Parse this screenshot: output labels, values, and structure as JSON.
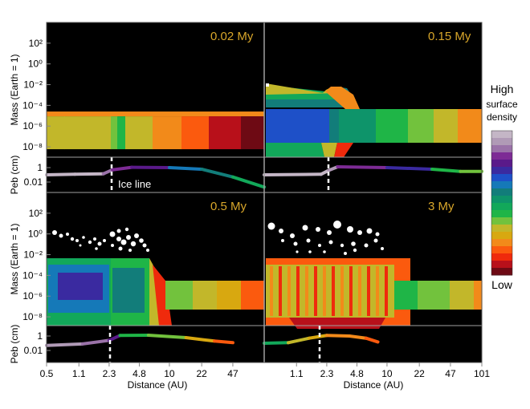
{
  "figure": {
    "x_axis_title": "Distance (AU)",
    "y_axis_title_mass": "Mass (Earth = 1)",
    "y_axis_title_peb": "Peb (cm)",
    "ice_line_label": "Ice line",
    "mass_ticks": [
      "10²",
      "10⁰",
      "10⁻²",
      "10⁻⁴",
      "10⁻⁶",
      "10⁻⁸"
    ],
    "peb_ticks": [
      "1",
      "0.01"
    ],
    "colorbar": {
      "high_label": "High",
      "sub_label_1": "surface",
      "sub_label_2": "density",
      "low_label": "Low",
      "colors": [
        "#c4b6c6",
        "#b09ab6",
        "#9a72a8",
        "#7d2b95",
        "#5a1a8a",
        "#3a2aa0",
        "#1e50c8",
        "#1579b8",
        "#127d7a",
        "#0e946a",
        "#12a85a",
        "#1fb547",
        "#72c23d",
        "#c2b72a",
        "#d8a810",
        "#f28a1a",
        "#fb5a0e",
        "#ef2a0c",
        "#b8101a",
        "#6e0a14"
      ]
    },
    "colors": {
      "background": "#000000",
      "ice_line": "#ffffff",
      "time_label": "#d8a62a",
      "divider": "#a0a0a0"
    }
  },
  "chart_data": [
    {
      "type": "heatmap",
      "panel": "top-left",
      "title": "0.02 My",
      "xscale": "log",
      "xlim": [
        0.5,
        101
      ],
      "yscale": "log",
      "ylim": [
        1e-09,
        10000.0
      ],
      "x_ticks": [
        0.5,
        1.1,
        2.3,
        4.8,
        10,
        22,
        47
      ],
      "x_tick_labels": [
        "0.5",
        "1.1",
        "2.3",
        "4.8",
        "10",
        "22",
        "47"
      ],
      "pebble_size_cm": [
        [
          0.5,
          0.1
        ],
        [
          1.0,
          0.12
        ],
        [
          2.0,
          0.14
        ],
        [
          2.5,
          0.5
        ],
        [
          4,
          1.1
        ],
        [
          10,
          1.0
        ],
        [
          22,
          0.6
        ],
        [
          47,
          0.05
        ],
        [
          101,
          0.002
        ]
      ]
    },
    {
      "type": "heatmap",
      "panel": "top-right",
      "title": "0.15 My",
      "xscale": "log",
      "xlim": [
        0.5,
        101
      ],
      "yscale": "log",
      "ylim": [
        1e-09,
        10000.0
      ],
      "x_ticks": [
        1.1,
        2.3,
        4.8,
        10,
        22,
        47,
        101
      ],
      "x_tick_labels": [
        "1.1",
        "2.3",
        "4.8",
        "10",
        "22",
        "47",
        "101"
      ],
      "pebble_size_cm": [
        [
          0.5,
          0.1
        ],
        [
          2.0,
          0.12
        ],
        [
          2.4,
          0.4
        ],
        [
          3,
          1.3
        ],
        [
          10,
          1.0
        ],
        [
          30,
          0.6
        ],
        [
          60,
          0.3
        ],
        [
          101,
          0.3
        ]
      ]
    },
    {
      "type": "heatmap",
      "panel": "bottom-left",
      "title": "0.5 My",
      "xscale": "log",
      "xlim": [
        0.5,
        101
      ],
      "yscale": "log",
      "ylim": [
        1e-09,
        10000.0
      ],
      "pebble_size_cm": [
        [
          0.5,
          0.05
        ],
        [
          1.2,
          0.08
        ],
        [
          2.3,
          0.25
        ],
        [
          3,
          1.2
        ],
        [
          6,
          1.3
        ],
        [
          15,
          0.6
        ],
        [
          30,
          0.2
        ],
        [
          47,
          0.12
        ]
      ]
    },
    {
      "type": "heatmap",
      "panel": "bottom-right",
      "title": "3 My",
      "xscale": "log",
      "xlim": [
        0.5,
        101
      ],
      "yscale": "log",
      "ylim": [
        1e-09,
        10000.0
      ],
      "pebble_size_cm": [
        [
          0.5,
          0.1
        ],
        [
          0.9,
          0.12
        ],
        [
          1.5,
          0.5
        ],
        [
          2.3,
          1.2
        ],
        [
          4,
          1.0
        ],
        [
          6,
          0.5
        ],
        [
          8,
          0.15
        ]
      ]
    }
  ]
}
